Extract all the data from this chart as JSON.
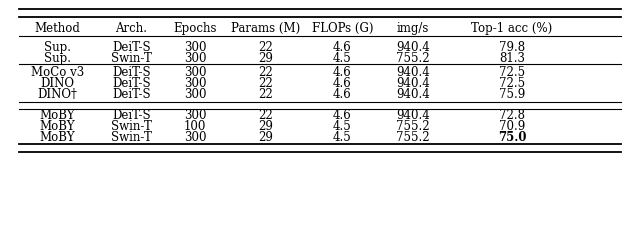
{
  "headers": [
    "Method",
    "Arch.",
    "Epochs",
    "Params (M)",
    "FLOPs (G)",
    "img/s",
    "Top-1 acc (%)"
  ],
  "col_positions": [
    0.09,
    0.205,
    0.305,
    0.415,
    0.535,
    0.645,
    0.8
  ],
  "rows": [
    [
      "Sup.",
      "DeiT-S",
      "300",
      "22",
      "4.6",
      "940.4",
      "79.8"
    ],
    [
      "Sup.",
      "Swin-T",
      "300",
      "29",
      "4.5",
      "755.2",
      "81.3"
    ],
    [
      "MoCo v3",
      "DeiT-S",
      "300",
      "22",
      "4.6",
      "940.4",
      "72.5"
    ],
    [
      "DINO",
      "DeiT-S",
      "300",
      "22",
      "4.6",
      "940.4",
      "72.5"
    ],
    [
      "DINO†",
      "DeiT-S",
      "300",
      "22",
      "4.6",
      "940.4",
      "75.9"
    ],
    [
      "MoBY",
      "DeiT-S",
      "300",
      "22",
      "4.6",
      "940.4",
      "72.8"
    ],
    [
      "MoBY",
      "Swin-T",
      "100",
      "29",
      "4.5",
      "755.2",
      "70.9"
    ],
    [
      "MoBY",
      "Swin-T",
      "300",
      "29",
      "4.5",
      "755.2",
      "75.0"
    ]
  ],
  "bold_cells": [
    [
      7,
      6
    ]
  ],
  "background_color": "#ffffff",
  "font_size": 8.5,
  "header_font_size": 8.5,
  "line_lw_thick": 1.3,
  "line_lw_thin": 0.8,
  "xmin": 0.03,
  "xmax": 0.97
}
